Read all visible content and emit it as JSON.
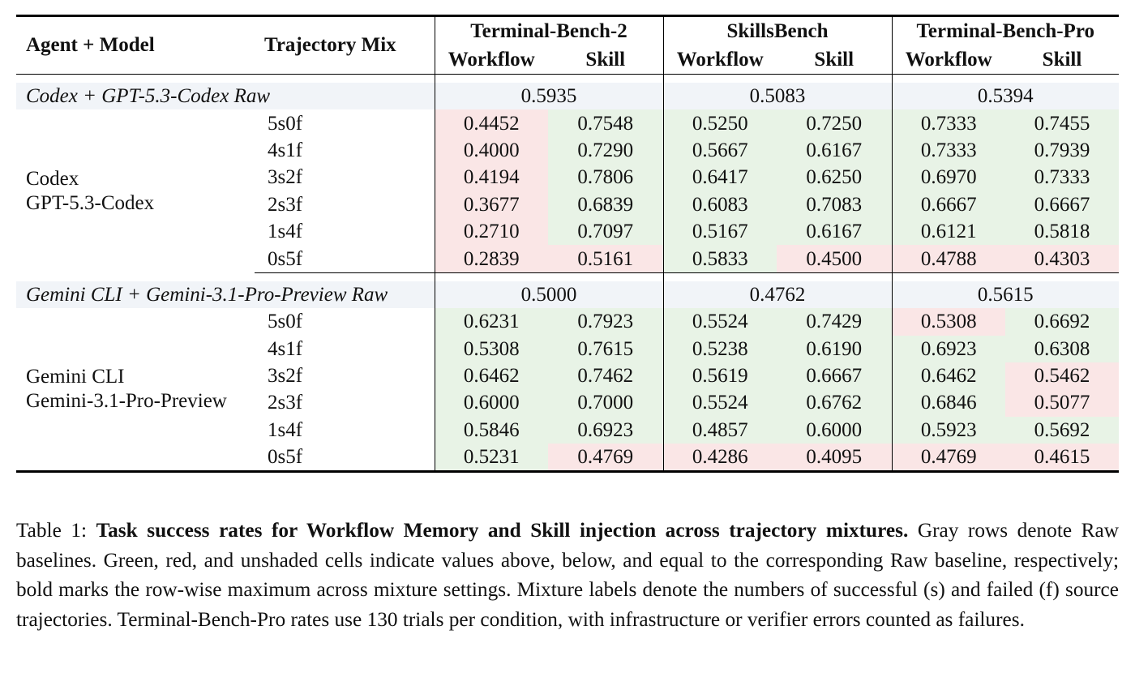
{
  "table": {
    "header": {
      "agent_model": "Agent + Model",
      "trajectory_mix": "Trajectory Mix",
      "benchmarks": [
        "Terminal-Bench-2",
        "SkillsBench",
        "Terminal-Bench-Pro"
      ],
      "sub": {
        "workflow": "Workflow",
        "skill": "Skill"
      }
    },
    "groups": [
      {
        "raw_label": "Codex + GPT-5.3-Codex Raw",
        "raw_values": [
          "0.5935",
          "0.5083",
          "0.5394"
        ],
        "agent_line1": "Codex",
        "agent_line2": "GPT-5.3-Codex",
        "rows": [
          {
            "mix": "5s0f",
            "values": [
              "0.4452",
              "0.7548",
              "0.5250",
              "0.7250",
              "0.7333",
              "0.7455"
            ]
          },
          {
            "mix": "4s1f",
            "values": [
              "0.4000",
              "0.7290",
              "0.5667",
              "0.6167",
              "0.7333",
              "0.7939"
            ]
          },
          {
            "mix": "3s2f",
            "values": [
              "0.4194",
              "0.7806",
              "0.6417",
              "0.6250",
              "0.6970",
              "0.7333"
            ]
          },
          {
            "mix": "2s3f",
            "values": [
              "0.3677",
              "0.6839",
              "0.6083",
              "0.7083",
              "0.6667",
              "0.6667"
            ]
          },
          {
            "mix": "1s4f",
            "values": [
              "0.2710",
              "0.7097",
              "0.5167",
              "0.6167",
              "0.6121",
              "0.5818"
            ]
          },
          {
            "mix": "0s5f",
            "values": [
              "0.2839",
              "0.5161",
              "0.5833",
              "0.4500",
              "0.4788",
              "0.4303"
            ]
          }
        ]
      },
      {
        "raw_label": "Gemini CLI + Gemini-3.1-Pro-Preview Raw",
        "raw_values": [
          "0.5000",
          "0.4762",
          "0.5615"
        ],
        "agent_line1": "Gemini CLI",
        "agent_line2": "Gemini-3.1-Pro-Preview",
        "rows": [
          {
            "mix": "5s0f",
            "values": [
              "0.6231",
              "0.7923",
              "0.5524",
              "0.7429",
              "0.5308",
              "0.6692"
            ]
          },
          {
            "mix": "4s1f",
            "values": [
              "0.5308",
              "0.7615",
              "0.5238",
              "0.6190",
              "0.6923",
              "0.6308"
            ]
          },
          {
            "mix": "3s2f",
            "values": [
              "0.6462",
              "0.7462",
              "0.5619",
              "0.6667",
              "0.6462",
              "0.5462"
            ]
          },
          {
            "mix": "2s3f",
            "values": [
              "0.6000",
              "0.7000",
              "0.5524",
              "0.6762",
              "0.6846",
              "0.5077"
            ]
          },
          {
            "mix": "1s4f",
            "values": [
              "0.5846",
              "0.6923",
              "0.4857",
              "0.6000",
              "0.5923",
              "0.5692"
            ]
          },
          {
            "mix": "0s5f",
            "values": [
              "0.5231",
              "0.4769",
              "0.4286",
              "0.4095",
              "0.4769",
              "0.4615"
            ]
          }
        ]
      }
    ],
    "colors": {
      "green": "#e8f3e6",
      "red": "#fae6e6",
      "raw_gray": "#f1f4f8"
    }
  },
  "caption": {
    "label": "Table 1:",
    "title": "Task success rates for Workflow Memory and Skill injection across trajectory mixtures.",
    "body": "Gray rows denote Raw baselines. Green, red, and unshaded cells indicate values above, below, and equal to the corresponding Raw baseline, respectively; bold marks the row-wise maximum across mixture settings. Mixture labels denote the numbers of successful (s) and failed (f) source trajectories. Terminal-Bench-Pro rates use 130 trials per condition, with infrastructure or verifier errors counted as failures."
  }
}
